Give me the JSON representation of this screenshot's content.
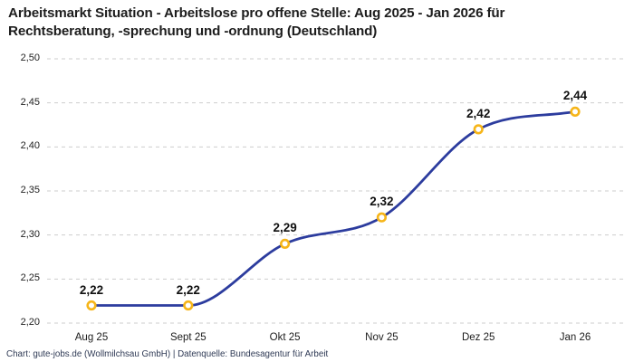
{
  "title": {
    "line1": "Arbeitsmarkt Situation - Arbeitslose pro offene Stelle: Aug 2025 - Jan 2026 für",
    "line2": "Rechtsberatung, -sprechung und -ordnung (Deutschland)"
  },
  "footer": "Chart: gute-jobs.de (Wollmilchsau GmbH) | Datenquelle: Bundesagentur für Arbeit",
  "chart_data": {
    "type": "line",
    "title": "Arbeitsmarkt Situation - Arbeitslose pro offene Stelle: Aug 2025 - Jan 2026 für Rechtsberatung, -sprechung und -ordnung (Deutschland)",
    "categories": [
      "Aug 25",
      "Sept 25",
      "Okt 25",
      "Nov 25",
      "Dez 25",
      "Jan 26"
    ],
    "values": [
      2.22,
      2.22,
      2.29,
      2.32,
      2.42,
      2.44
    ],
    "point_labels": [
      "2,22",
      "2,22",
      "2,29",
      "2,32",
      "2,42",
      "2,44"
    ],
    "yticks": [
      "2,50",
      "2,45",
      "2,40",
      "2,35",
      "2,30",
      "2,25",
      "2,20"
    ],
    "ytick_values": [
      2.5,
      2.45,
      2.4,
      2.35,
      2.3,
      2.25,
      2.2
    ],
    "ylim": [
      2.2,
      2.5
    ],
    "xlabel": "",
    "ylabel": "",
    "grid": "horizontal-dashed",
    "line_style": "smooth-spline",
    "legend": "none",
    "colors": {
      "line": "#2c3c9e",
      "marker_ring": "#f6b519",
      "marker_fill": "#ffffff",
      "grid": "#cdcdcd",
      "title_text": "#1d1d1d",
      "footer_text": "#2f3a55"
    }
  }
}
